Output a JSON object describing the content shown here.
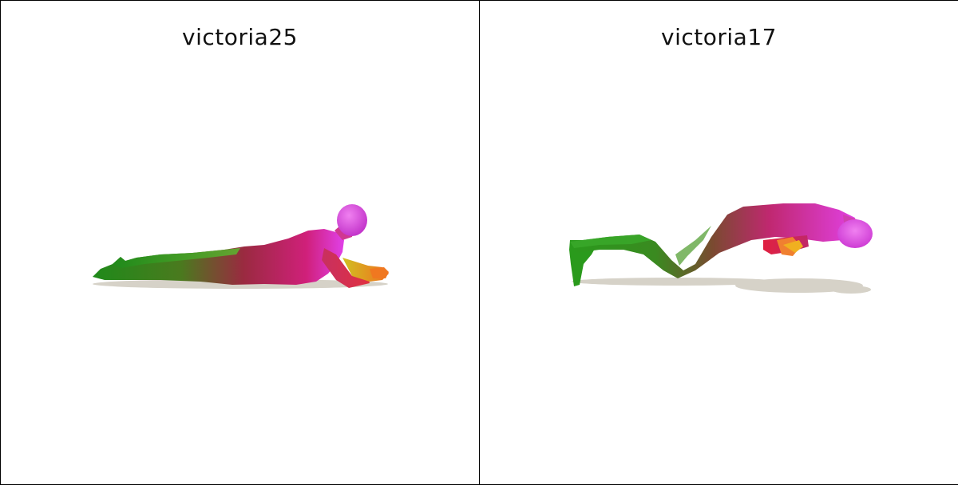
{
  "panels": [
    {
      "title": "victoria25",
      "pose": "prone-forearm-plank",
      "colors": {
        "head": "#e040e8",
        "torso": "#c02078",
        "legs": "#2c9a1c",
        "hands": "#f07820",
        "shadow": "#d6d2c8"
      }
    },
    {
      "title": "victoria17",
      "pose": "arched-backbend",
      "colors": {
        "head": "#e040e8",
        "torso": "#c02078",
        "legs": "#2c9a1c",
        "hands": "#f07820",
        "shadow": "#d6d2c8"
      }
    }
  ]
}
